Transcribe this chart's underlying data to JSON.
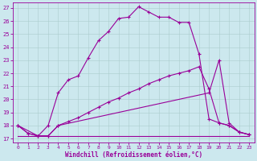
{
  "xlabel": "Windchill (Refroidissement éolien,°C)",
  "bg_color": "#cce8ee",
  "line_color": "#990099",
  "xlim_min": -0.5,
  "xlim_max": 23.5,
  "ylim_min": 16.7,
  "ylim_max": 27.4,
  "yticks": [
    17,
    18,
    19,
    20,
    21,
    22,
    23,
    24,
    25,
    26,
    27
  ],
  "xticks": [
    0,
    1,
    2,
    3,
    4,
    5,
    6,
    7,
    8,
    9,
    10,
    11,
    12,
    13,
    14,
    15,
    16,
    17,
    18,
    19,
    20,
    21,
    22,
    23
  ],
  "line1_x": [
    0,
    1,
    2,
    3,
    4,
    5,
    6,
    7,
    8,
    9,
    10,
    11,
    12,
    13,
    14,
    15,
    16,
    17,
    18,
    19,
    20,
    21,
    22,
    23
  ],
  "line1_y": [
    18.0,
    17.4,
    17.2,
    18.0,
    20.5,
    21.5,
    21.8,
    23.2,
    24.5,
    25.2,
    26.2,
    26.3,
    27.1,
    26.7,
    26.3,
    26.3,
    25.9,
    25.9,
    23.5,
    18.5,
    18.2,
    18.0,
    17.5,
    17.3
  ],
  "line2_x": [
    0,
    2,
    3,
    4,
    19,
    20,
    21,
    22,
    23
  ],
  "line2_y": [
    18.0,
    17.2,
    17.2,
    18.0,
    20.5,
    23.0,
    18.2,
    17.5,
    17.3
  ],
  "line3_x": [
    0,
    1,
    2,
    3,
    4,
    5,
    6,
    7,
    8,
    9,
    10,
    11,
    12,
    13,
    14,
    15,
    16,
    17,
    18,
    19,
    20,
    21,
    22,
    23
  ],
  "line3_y": [
    18.0,
    17.4,
    17.2,
    17.2,
    18.0,
    18.3,
    18.6,
    19.0,
    19.4,
    19.8,
    20.1,
    20.5,
    20.8,
    21.2,
    21.5,
    21.8,
    22.0,
    22.2,
    22.5,
    20.8,
    18.2,
    18.0,
    17.5,
    17.3
  ],
  "line4_x": [
    0,
    13,
    23
  ],
  "line4_y": [
    17.2,
    17.2,
    17.2
  ]
}
